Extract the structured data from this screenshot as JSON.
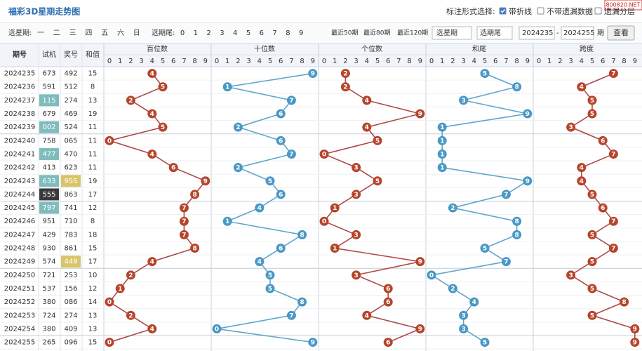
{
  "header": {
    "title": "福彩3D星期走势图",
    "site": "800820.NET",
    "style_label": "标注形式选择:",
    "options": [
      {
        "label": "带折线",
        "checked": true
      },
      {
        "label": "不带遗漏数据",
        "checked": false
      },
      {
        "label": "遗漏分层",
        "checked": false
      }
    ]
  },
  "filters": {
    "weekday_label": "选星期:",
    "weekdays": [
      "一",
      "二",
      "三",
      "四",
      "五",
      "六",
      "日"
    ],
    "tail_label": "选期尾:",
    "tails": [
      "0",
      "1",
      "2",
      "3",
      "4",
      "5",
      "6",
      "7",
      "8",
      "9"
    ],
    "recent": [
      "最近50期",
      "最近80期",
      "最近120期"
    ],
    "weekday_select": "选星期",
    "tail_select": "选期尾",
    "from": "2024235",
    "range_sep": "-",
    "to": "2024255",
    "unit": "期",
    "submit": "查看"
  },
  "table": {
    "columns": [
      "期号",
      "试机",
      "奖号",
      "和值"
    ],
    "digits": [
      0,
      1,
      2,
      3,
      4,
      5,
      6,
      7,
      8,
      9
    ],
    "rows": [
      {
        "issue": "2024235",
        "trial": "673",
        "number": "492",
        "sum": 15
      },
      {
        "issue": "2024236",
        "trial": "591",
        "number": "512",
        "sum": 8
      },
      {
        "issue": "2024237",
        "trial": "115",
        "number": "274",
        "sum": 13,
        "trial_bg": "#7fbcbc",
        "trial_fg": "#ffffff"
      },
      {
        "issue": "2024238",
        "trial": "679",
        "number": "469",
        "sum": 19
      },
      {
        "issue": "2024239",
        "trial": "002",
        "number": "524",
        "sum": 11,
        "trial_bg": "#7fbcbc",
        "trial_fg": "#ffffff"
      },
      {
        "issue": "2024240",
        "trial": "758",
        "number": "065",
        "sum": 11
      },
      {
        "issue": "2024241",
        "trial": "477",
        "number": "470",
        "sum": 11,
        "trial_bg": "#7fbcbc",
        "trial_fg": "#ffffff"
      },
      {
        "issue": "2024242",
        "trial": "413",
        "number": "623",
        "sum": 11
      },
      {
        "issue": "2024243",
        "trial": "633",
        "number": "955",
        "sum": 19,
        "trial_bg": "#7fbcbc",
        "trial_fg": "#ffffff",
        "number_bg": "#d9c46a",
        "number_fg": "#ffffff"
      },
      {
        "issue": "2024244",
        "trial": "555",
        "number": "863",
        "sum": 17,
        "trial_bg": "#3a3a3a",
        "trial_fg": "#ffffff"
      },
      {
        "issue": "2024245",
        "trial": "797",
        "number": "741",
        "sum": 12,
        "trial_bg": "#7fbcbc",
        "trial_fg": "#ffffff"
      },
      {
        "issue": "2024246",
        "trial": "951",
        "number": "710",
        "sum": 8
      },
      {
        "issue": "2024247",
        "trial": "429",
        "number": "783",
        "sum": 18
      },
      {
        "issue": "2024248",
        "trial": "930",
        "number": "861",
        "sum": 15
      },
      {
        "issue": "2024249",
        "trial": "574",
        "number": "449",
        "sum": 17,
        "number_bg": "#d9c46a",
        "number_fg": "#ffffff"
      },
      {
        "issue": "2024250",
        "trial": "721",
        "number": "253",
        "sum": 10
      },
      {
        "issue": "2024251",
        "trial": "537",
        "number": "156",
        "sum": 12
      },
      {
        "issue": "2024252",
        "trial": "380",
        "number": "086",
        "sum": 14
      },
      {
        "issue": "2024253",
        "trial": "724",
        "number": "274",
        "sum": 13
      },
      {
        "issue": "2024254",
        "trial": "380",
        "number": "409",
        "sum": 13
      },
      {
        "issue": "2024255",
        "trial": "265",
        "number": "096",
        "sum": 15
      }
    ],
    "groups": [
      {
        "name": "百位数",
        "color": "#b5452b",
        "line": "#b04a4a",
        "values": [
          4,
          5,
          2,
          4,
          5,
          0,
          4,
          6,
          9,
          8,
          7,
          7,
          7,
          8,
          4,
          2,
          1,
          0,
          2,
          4,
          0
        ]
      },
      {
        "name": "十位数",
        "color": "#4a98c4",
        "line": "#5ea6cc",
        "values": [
          9,
          1,
          7,
          6,
          2,
          6,
          7,
          2,
          5,
          6,
          4,
          1,
          8,
          6,
          4,
          5,
          5,
          8,
          7,
          0,
          9
        ]
      },
      {
        "name": "个位数",
        "color": "#b5452b",
        "line": "#b04a4a",
        "values": [
          2,
          2,
          4,
          9,
          4,
          5,
          0,
          3,
          5,
          3,
          1,
          0,
          3,
          1,
          9,
          3,
          6,
          6,
          4,
          9,
          6
        ]
      },
      {
        "name": "和尾",
        "color": "#4a98c4",
        "line": "#5ea6cc",
        "values": [
          5,
          8,
          3,
          9,
          1,
          1,
          1,
          1,
          9,
          7,
          2,
          8,
          8,
          5,
          7,
          0,
          2,
          4,
          3,
          3,
          5
        ]
      },
      {
        "name": "跨度",
        "color": "#b5452b",
        "line": "#b04a4a",
        "values": [
          7,
          4,
          5,
          5,
          3,
          6,
          7,
          4,
          4,
          5,
          6,
          7,
          5,
          7,
          5,
          3,
          5,
          8,
          5,
          9,
          9
        ]
      }
    ]
  }
}
